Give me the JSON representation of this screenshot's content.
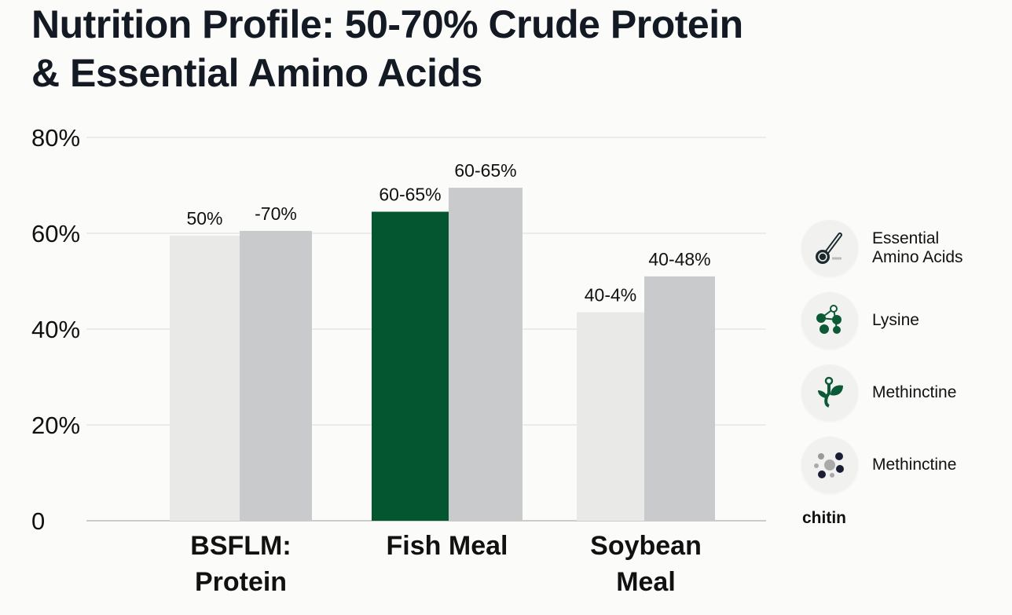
{
  "title_line1": "Nutrition Profile: 50-70% Crude Protein",
  "title_line2": "& Essential Amino Acids",
  "chart_data": {
    "type": "bar",
    "title": "Nutrition Profile: 50-70% Crude Protein & Essential Amino Acids",
    "categories": [
      "BSFLM: Protein",
      "Fish Meal",
      "Soybean Meal"
    ],
    "category_lines": [
      [
        "BSFLM:",
        "Protein"
      ],
      [
        "Fish Meal"
      ],
      [
        "Soybean",
        "Meal"
      ]
    ],
    "series": [
      {
        "values": [
          59.5,
          64.5,
          43.5
        ],
        "labels": [
          "50%",
          "60-65%",
          "40-4%"
        ],
        "colors": [
          "#e9eae8",
          "#03562f",
          "#e9eae8"
        ]
      },
      {
        "values": [
          60.5,
          69.5,
          51
        ],
        "labels": [
          "-70%",
          "60-65%",
          "40-48%"
        ],
        "colors": [
          "#c9cacb",
          "#c9cacb",
          "#c9cacb"
        ]
      }
    ],
    "yticks": [
      0,
      20,
      40,
      60,
      80
    ],
    "ytick_labels": [
      "0",
      "20%",
      "40%",
      "60%",
      "80%"
    ],
    "ylim": [
      0,
      80
    ],
    "grid": true,
    "legend_placement": "right"
  },
  "legend": [
    {
      "label": "Essential\nAmino Acids",
      "icon": "spoon-icon"
    },
    {
      "label": "Lysine",
      "icon": "molecule-icon"
    },
    {
      "label": "Methinctine",
      "icon": "sprout-icon"
    },
    {
      "label": "Methinctine",
      "icon": "dots-icon"
    }
  ],
  "footer_label": "chitin"
}
